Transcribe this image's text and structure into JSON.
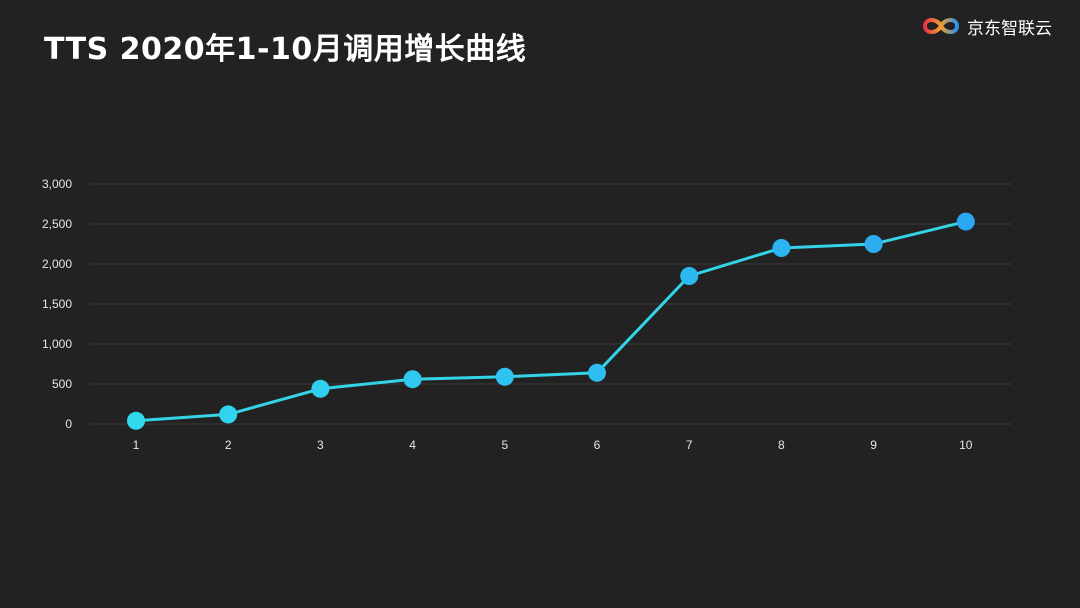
{
  "title": "TTS 2020年1-10月调用增长曲线",
  "logo": {
    "text": "京东智联云",
    "icon": "jd-cloud-logo-icon"
  },
  "colors": {
    "background": "#222222",
    "line": "#35d3e6",
    "marker_start": "#31d9ee",
    "marker_end": "#2ba8f3",
    "grid": "#3a3a3a"
  },
  "chart_data": {
    "type": "line",
    "x": [
      "1",
      "2",
      "3",
      "4",
      "5",
      "6",
      "7",
      "8",
      "9",
      "10"
    ],
    "series": [
      {
        "values": [
          40,
          120,
          440,
          560,
          590,
          640,
          1850,
          2200,
          2250,
          2530
        ]
      }
    ],
    "ylim": [
      0,
      3000
    ],
    "yticks": [
      "0",
      "500",
      "1,000",
      "1,500",
      "2,000",
      "2,500",
      "3,000"
    ],
    "grid": true,
    "xlabel": "",
    "ylabel": ""
  }
}
